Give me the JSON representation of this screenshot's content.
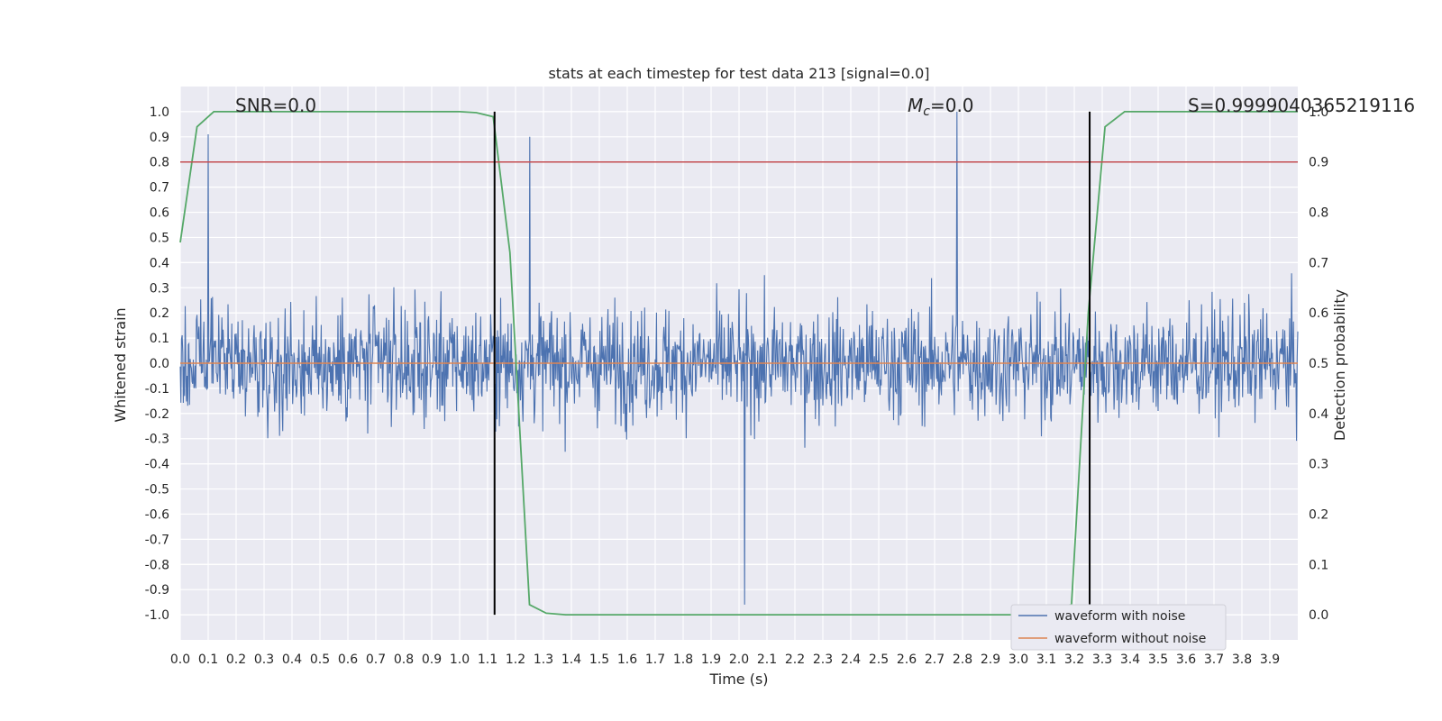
{
  "chart_data": {
    "type": "line",
    "title": "stats at each timestep for test data 213 [signal=0.0]",
    "xlabel": "Time (s)",
    "ylabel": "Whitened strain",
    "y2label": "Detection probability",
    "xlim": [
      0.0,
      4.0
    ],
    "ylim": [
      -1.1,
      1.1
    ],
    "y2lim": [
      -0.05,
      1.05
    ],
    "x_ticks": [
      "0.0",
      "0.1",
      "0.2",
      "0.3",
      "0.4",
      "0.5",
      "0.6",
      "0.7",
      "0.8",
      "0.9",
      "1.0",
      "1.1",
      "1.2",
      "1.3",
      "1.4",
      "1.5",
      "1.6",
      "1.7",
      "1.8",
      "1.9",
      "2.0",
      "2.1",
      "2.2",
      "2.3",
      "2.4",
      "2.5",
      "2.6",
      "2.7",
      "2.8",
      "2.9",
      "3.0",
      "3.1",
      "3.2",
      "3.3",
      "3.4",
      "3.5",
      "3.6",
      "3.7",
      "3.8",
      "3.9"
    ],
    "y_ticks": [
      "1.0",
      "0.9",
      "0.8",
      "0.7",
      "0.6",
      "0.5",
      "0.4",
      "0.3",
      "0.2",
      "0.1",
      "0.0",
      "-0.1",
      "-0.2",
      "-0.3",
      "-0.4",
      "-0.5",
      "-0.6",
      "-0.7",
      "-0.8",
      "-0.9",
      "-1.0"
    ],
    "y2_ticks": [
      "1.0",
      "0.9",
      "0.8",
      "0.7",
      "0.6",
      "0.5",
      "0.4",
      "0.3",
      "0.2",
      "0.1",
      "0.0"
    ],
    "grid": true,
    "legend_position": "lower-right",
    "annotations": {
      "snr": "SNR=0.0",
      "mc_symbol": "M",
      "mc_subscript": "c",
      "mc_value": "=0.0",
      "s": "S=0.9999040365219116"
    },
    "series": [
      {
        "name": "waveform with noise",
        "color": "#4c72b0",
        "axis": "left",
        "amplitude_range": [
          -0.96,
          1.0
        ],
        "peaks": [
          {
            "x": 2.78,
            "y": 1.0
          },
          {
            "x": 0.1,
            "y": 0.91
          },
          {
            "x": 1.25,
            "y": 0.9
          },
          {
            "x": 2.02,
            "y": -0.96
          }
        ]
      },
      {
        "name": "waveform without noise",
        "color": "#dd8452",
        "axis": "left",
        "x": [
          0.0,
          4.0
        ],
        "y": [
          0.0,
          0.0
        ]
      },
      {
        "color": "#55a868",
        "axis": "right",
        "x": [
          0.0,
          0.06,
          0.12,
          0.19,
          0.5,
          1.0,
          1.06,
          1.12,
          1.18,
          1.25,
          1.31,
          1.38,
          2.0,
          3.0,
          3.19,
          3.25,
          3.31,
          3.38,
          4.0
        ],
        "y": [
          0.74,
          0.97,
          1.0,
          1.0,
          1.0,
          1.0,
          0.998,
          0.99,
          0.72,
          0.02,
          0.003,
          0.0,
          0.0,
          0.0,
          0.02,
          0.6,
          0.97,
          1.0,
          1.0
        ]
      },
      {
        "color": "#c44e52",
        "axis": "right",
        "x": [
          0.0,
          4.0
        ],
        "y": [
          0.9,
          0.9
        ]
      },
      {
        "color": "#000000",
        "axis": "right",
        "x": [
          1.125,
          1.125
        ],
        "y": [
          0.0,
          1.0
        ]
      },
      {
        "color": "#000000",
        "axis": "right",
        "x": [
          3.255,
          3.255
        ],
        "y": [
          0.0,
          1.0
        ]
      }
    ]
  }
}
